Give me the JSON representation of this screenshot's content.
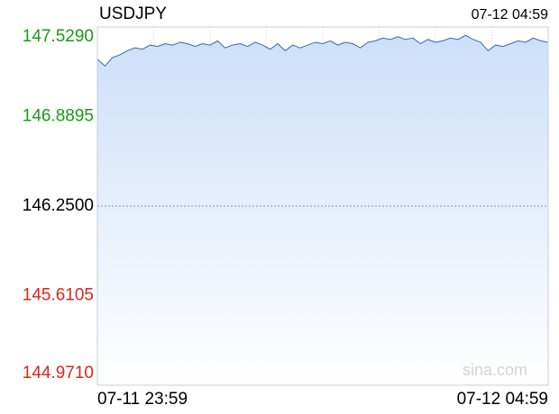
{
  "chart_data": {
    "type": "area",
    "title": "USDJPY",
    "time": "07-12 04:59",
    "watermark": "sina.com",
    "categories": [
      "07-11 23:59",
      null,
      null,
      null,
      null,
      null,
      null,
      null,
      null,
      null,
      null,
      null,
      null,
      null,
      null,
      null,
      null,
      null,
      null,
      null,
      null,
      null,
      null,
      null,
      null,
      null,
      null,
      null,
      null,
      null,
      null,
      null,
      null,
      null,
      null,
      null,
      null,
      null,
      null,
      null,
      null,
      null,
      null,
      null,
      null,
      null,
      null,
      null,
      null,
      null,
      null,
      null,
      null,
      null,
      null,
      null,
      null,
      null,
      null,
      null,
      "07-12 04:59"
    ],
    "values": [
      147.3,
      147.25,
      147.31,
      147.33,
      147.36,
      147.38,
      147.37,
      147.4,
      147.39,
      147.41,
      147.4,
      147.42,
      147.41,
      147.39,
      147.41,
      147.4,
      147.43,
      147.38,
      147.4,
      147.41,
      147.39,
      147.42,
      147.4,
      147.37,
      147.41,
      147.36,
      147.4,
      147.38,
      147.4,
      147.42,
      147.41,
      147.43,
      147.4,
      147.42,
      147.41,
      147.38,
      147.42,
      147.43,
      147.45,
      147.44,
      147.46,
      147.44,
      147.45,
      147.41,
      147.44,
      147.42,
      147.43,
      147.45,
      147.44,
      147.47,
      147.44,
      147.42,
      147.36,
      147.4,
      147.39,
      147.41,
      147.43,
      147.42,
      147.45,
      147.43,
      147.42
    ],
    "color": "#3c66b0",
    "fill_color": "#cddff9",
    "ylim": [
      144.971,
      147.529
    ],
    "yticks": [
      {
        "value": 144.971,
        "label": "144.9710"
      },
      {
        "value": 145.6105,
        "label": "145.6105"
      },
      {
        "value": 146.25,
        "label": "146.2500"
      },
      {
        "value": 146.8895,
        "label": "146.8895"
      },
      {
        "value": 147.529,
        "label": "147.5290"
      }
    ],
    "ytick_colors": [
      "#e0241a",
      "#e0241a",
      "#000000",
      "#1a9a1a",
      "#1a9a1a"
    ]
  }
}
